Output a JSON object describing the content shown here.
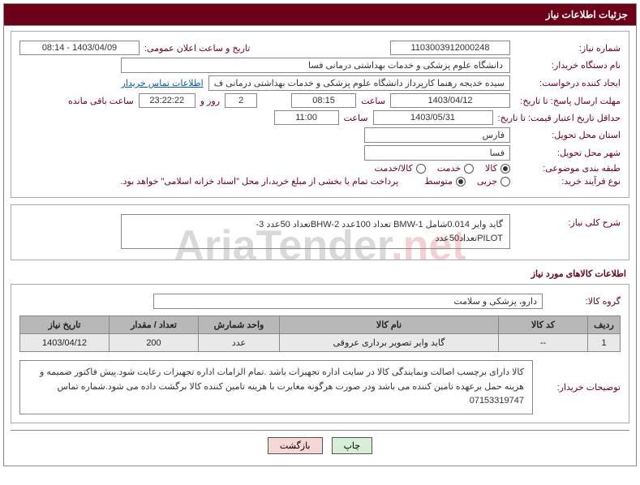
{
  "panel_title": "جزئیات اطلاعات نیاز",
  "labels": {
    "req_no": "شماره نیاز:",
    "announce_dt": "تاریخ و ساعت اعلان عمومی:",
    "buyer_org": "نام دستگاه خریدار:",
    "requester": "ایجاد کننده درخواست:",
    "contact_link": "اطلاعات تماس خریدار",
    "reply_deadline": "مهلت ارسال پاسخ: تا تاریخ:",
    "saat": "ساعت",
    "rooz_va": "روز و",
    "remaining": "ساعت باقی مانده",
    "validity_min": "حداقل تاریخ اعتبار قیمت: تا تاریخ:",
    "delivery_province": "استان محل تحویل:",
    "delivery_city": "شهر محل تحویل:",
    "category": "طبقه بندی موضوعی:",
    "proc_type": "نوع فرآیند خرید:",
    "proc_note": "پرداخت تمام یا بخشی از مبلغ خرید،از محل \"اسناد خزانه اسلامی\" خواهد بود.",
    "desc": "شرح کلی نیاز:",
    "section_items": "اطلاعات کالاهای مورد نیاز",
    "goods_group": "گروه کالا:",
    "buyer_notes": "توضیحات خریدار:"
  },
  "values": {
    "req_no": "1103003912000248",
    "announce_dt": "1403/04/09 - 08:14",
    "buyer_org": "دانشگاه علوم پزشکی و خدمات بهداشتی درمانی فسا",
    "requester": "سیده خدیجه رهنما کارپرداز دانشگاه علوم پزشکی و خدمات بهداشتی درمانی ف",
    "reply_date": "1403/04/12",
    "reply_time": "08:15",
    "days_left": "2",
    "hms_left": "23:22:22",
    "validity_date": "1403/05/31",
    "validity_time": "11:00",
    "province": "فارس",
    "city": "فسا",
    "desc_line1": "گاید وایر 0.014شامل BMW-1 تعداد 100عدد          BHW-2تعداد 50عدد          3-",
    "desc_line2": "PILOTتعداد50عدد",
    "goods_group": "دارو، پزشکی و سلامت",
    "buyer_notes": "کالا دارای برچسب اصالت ونمایندگی کالا در سایت اداره تجهیزات باشد .تمام الزامات اداره تجهیزات رعایت شود.پیش فاکتور ضمیمه و هزینه حمل برعهده تامین کننده می باشد ودر صورت هرگونه مغایرت با هزینه تامین کننده کالا برگشت داده می شود.شماره تماس 07153319747"
  },
  "radios_cat": [
    {
      "label": "کالا",
      "checked": true
    },
    {
      "label": "خدمت",
      "checked": false
    },
    {
      "label": "کالا/خدمت",
      "checked": false
    }
  ],
  "radios_proc": [
    {
      "label": "جزیی",
      "checked": false
    },
    {
      "label": "متوسط",
      "checked": true
    }
  ],
  "table": {
    "headers": [
      "ردیف",
      "کد کالا",
      "نام کالا",
      "واحد شمارش",
      "تعداد / مقدار",
      "تاریخ نیاز"
    ],
    "rows": [
      [
        "1",
        "--",
        "گاید وایر تصویر برداری عروقی",
        "عدد",
        "200",
        "1403/04/12"
      ]
    ]
  },
  "buttons": {
    "print": "چاپ",
    "back": "بازگشت"
  },
  "watermark": {
    "a": "AriaTender",
    "b": ".net"
  }
}
